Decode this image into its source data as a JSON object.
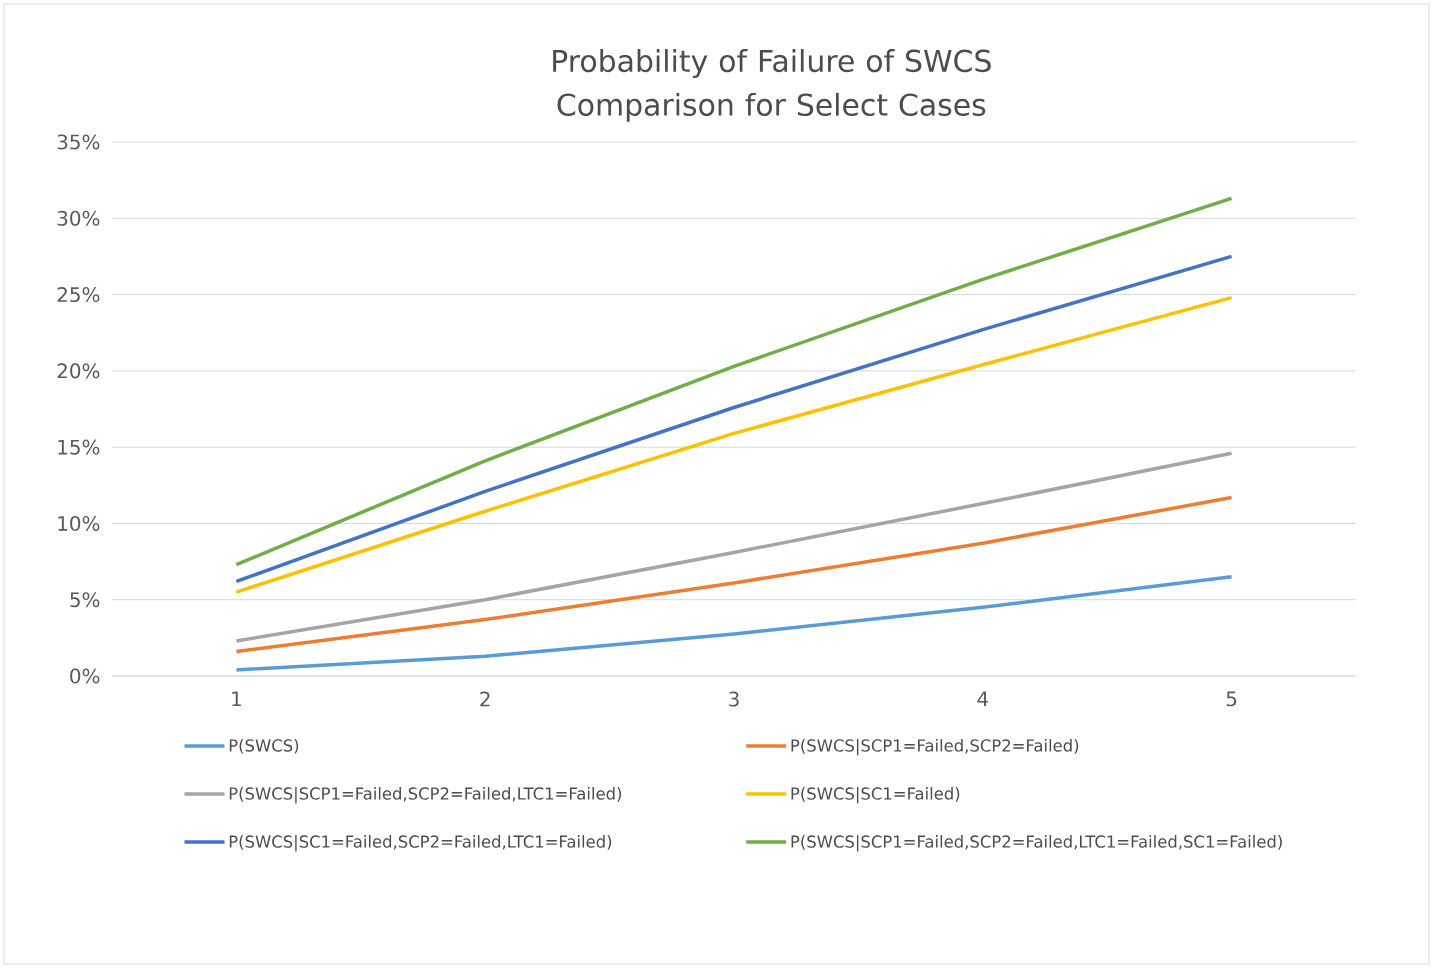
{
  "chart_data": {
    "type": "line",
    "title": "Probability of Failure of SWCS Comparison for Select Cases",
    "categories": [
      "1",
      "2",
      "3",
      "4",
      "5"
    ],
    "series": [
      {
        "name": "P(SWCS)",
        "color": "#5b9bd5",
        "values": [
          0.4,
          1.3,
          2.75,
          4.5,
          6.5
        ]
      },
      {
        "name": "P(SWCS|SCP1=Failed,SCP2=Failed)",
        "color": "#ed7d31",
        "values": [
          1.6,
          3.7,
          6.1,
          8.7,
          11.7
        ]
      },
      {
        "name": "P(SWCS|SCP1=Failed,SCP2=Failed,LTC1=Failed)",
        "color": "#a5a5a5",
        "values": [
          2.3,
          5.0,
          8.1,
          11.3,
          14.6
        ]
      },
      {
        "name": "P(SWCS|SC1=Failed)",
        "color": "#ffc000",
        "values": [
          5.5,
          10.8,
          15.9,
          20.4,
          24.8
        ]
      },
      {
        "name": "P(SWCS|SC1=Failed,SCP2=Failed,LTC1=Failed)",
        "color": "#4472c4",
        "values": [
          6.2,
          12.1,
          17.6,
          22.7,
          27.5
        ]
      },
      {
        "name": "P(SWCS|SCP1=Failed,SCP2=Failed,LTC1=Failed,SC1=Failed)",
        "color": "#70ad47",
        "values": [
          7.3,
          14.1,
          20.3,
          26.0,
          31.3
        ]
      }
    ],
    "ylim": [
      0,
      35
    ],
    "yticks": [
      {
        "value": 0,
        "label": "0%"
      },
      {
        "value": 5,
        "label": "5%"
      },
      {
        "value": 10,
        "label": "10%"
      },
      {
        "value": 15,
        "label": "15%"
      },
      {
        "value": 20,
        "label": "20%"
      },
      {
        "value": 25,
        "label": "25%"
      },
      {
        "value": 30,
        "label": "30%"
      },
      {
        "value": 35,
        "label": "35%"
      }
    ],
    "grid": "y",
    "legend": "bottom"
  }
}
